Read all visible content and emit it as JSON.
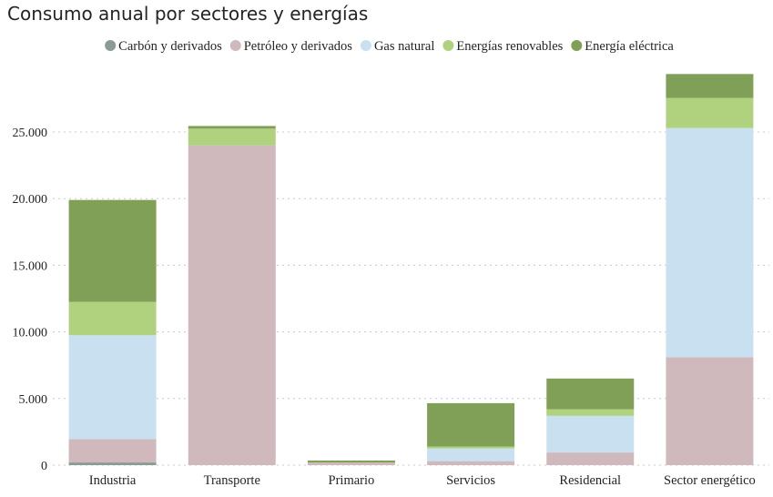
{
  "chart_data": {
    "type": "bar",
    "stacked": true,
    "title": "Consumo anual por sectores y energías",
    "categories": [
      "Industria",
      "Transporte",
      "Primario",
      "Servicios",
      "Residencial",
      "Sector energético"
    ],
    "series": [
      {
        "name": "Carbón y derivados",
        "color": "#8a9a94",
        "values": [
          200,
          0,
          0,
          0,
          0,
          0
        ]
      },
      {
        "name": "Petróleo y derivados",
        "color": "#d0b9bd",
        "values": [
          1750,
          24000,
          200,
          300,
          950,
          8100
        ]
      },
      {
        "name": "Gas natural",
        "color": "#c9e0f1",
        "values": [
          7800,
          0,
          0,
          950,
          2750,
          17200
        ]
      },
      {
        "name": "Energías renovables",
        "color": "#b0d27e",
        "values": [
          2500,
          1250,
          0,
          150,
          500,
          2250
        ]
      },
      {
        "name": "Energía eléctrica",
        "color": "#80a057",
        "values": [
          7650,
          200,
          150,
          3250,
          2300,
          1800
        ]
      }
    ],
    "yticks": [
      "0",
      "5.000",
      "10.000",
      "15.000",
      "20.000",
      "25.000"
    ],
    "ylim": [
      0,
      30000
    ],
    "grid": true,
    "legend_position": "top"
  }
}
